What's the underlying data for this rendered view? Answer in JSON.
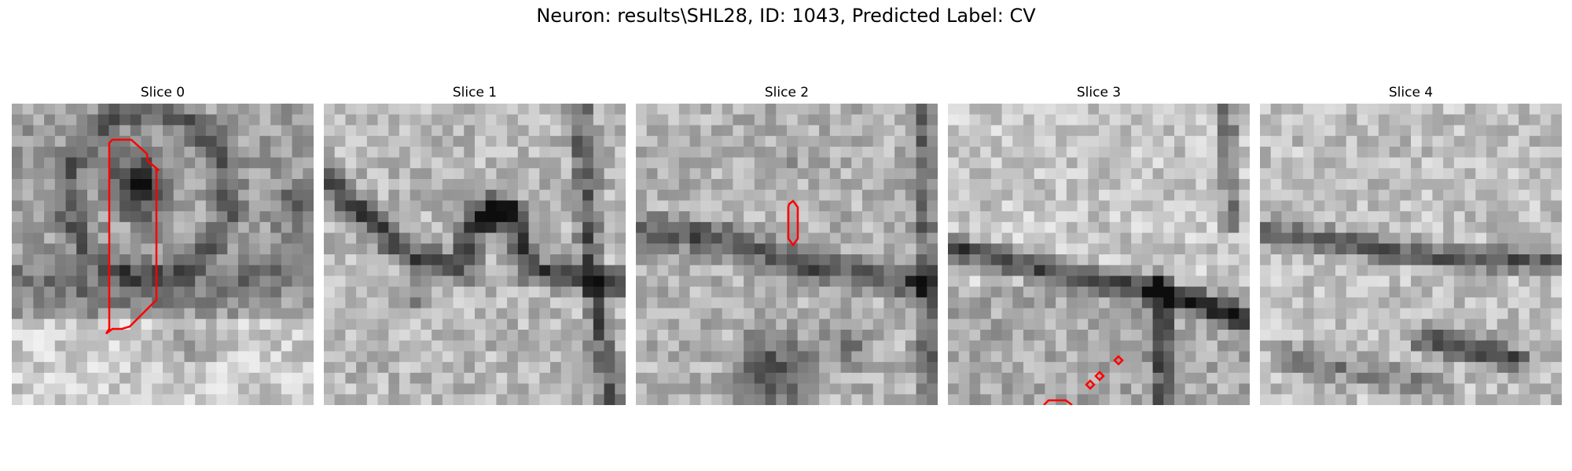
{
  "figure": {
    "title": "Neuron: results\\SHL28, ID: 1043, Predicted Label: CV"
  },
  "panels": [
    {
      "title": "Slice 0"
    },
    {
      "title": "Slice 1"
    },
    {
      "title": "Slice 2"
    },
    {
      "title": "Slice 3"
    },
    {
      "title": "Slice 4"
    }
  ],
  "colors": {
    "contour": "#ff0000",
    "background": "#ffffff"
  },
  "image": {
    "grid_cells": 28,
    "colormap": "grayscale"
  }
}
